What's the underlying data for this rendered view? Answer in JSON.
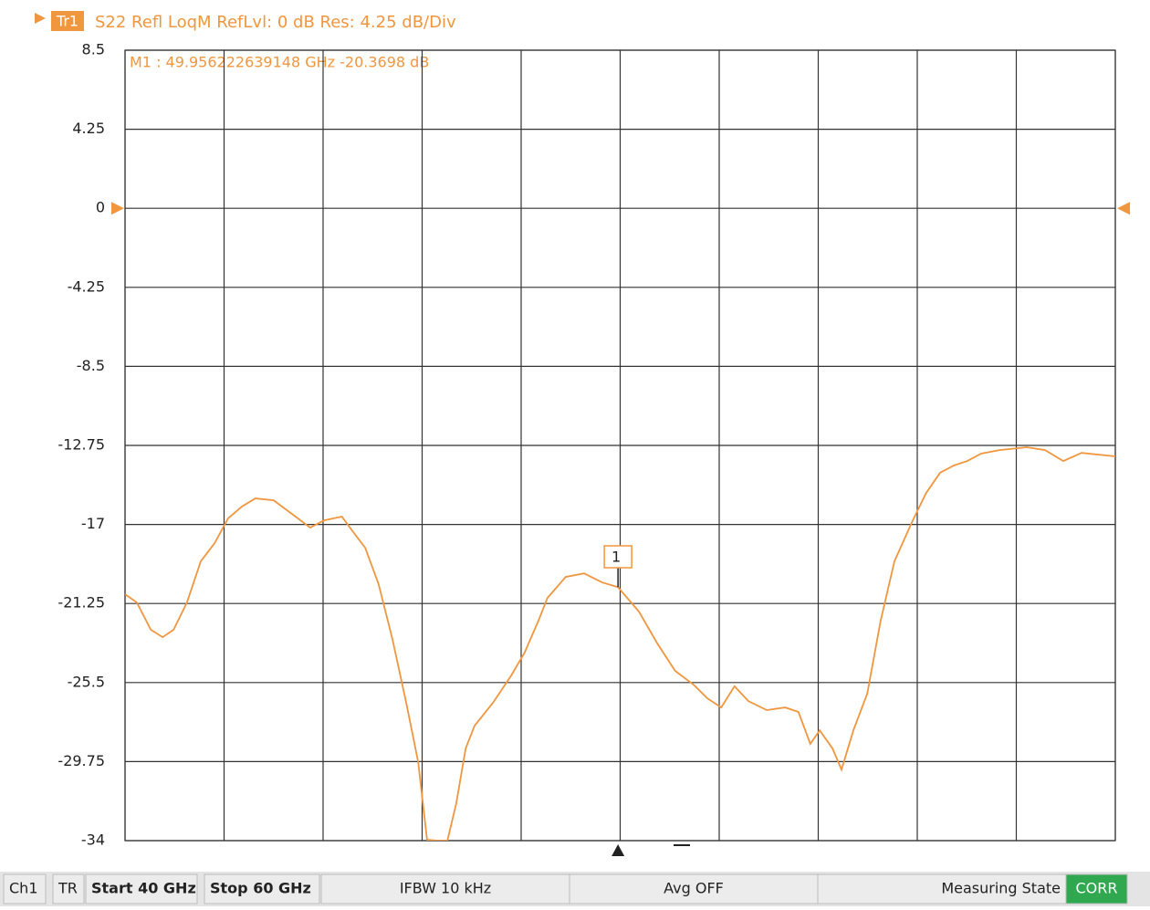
{
  "chart_data": {
    "type": "line",
    "trace_tag": "Tr1",
    "title": "S22 Refl LoqM RefLvl: 0 dB Res: 4.25 dB/Div",
    "reference": 0,
    "xlim": [
      40,
      60
    ],
    "xticks": [
      40,
      42,
      44,
      46,
      48,
      50,
      52,
      54,
      56,
      58,
      60
    ],
    "ylim": [
      -34,
      8.5
    ],
    "yticks": [
      8.5,
      4.25,
      0,
      -4.25,
      -8.5,
      -12.75,
      -17,
      -21.25,
      -25.5,
      -29.75,
      -34
    ],
    "grid": true,
    "series": [
      {
        "color": "#f0963f",
        "x": [
          40.0,
          40.24,
          40.52,
          40.76,
          40.98,
          41.25,
          41.53,
          41.81,
          42.08,
          42.36,
          42.63,
          43.0,
          43.37,
          43.74,
          44.02,
          44.38,
          44.57,
          44.85,
          45.12,
          45.4,
          45.68,
          45.92,
          46.1,
          46.32,
          46.51,
          46.69,
          46.88,
          47.06,
          47.43,
          47.8,
          48.07,
          48.35,
          48.53,
          48.9,
          49.27,
          49.64,
          49.956,
          50.38,
          50.75,
          51.11,
          51.48,
          51.76,
          52.04,
          52.31,
          52.59,
          52.96,
          53.33,
          53.6,
          53.84,
          54.03,
          54.29,
          54.47,
          54.71,
          54.99,
          55.26,
          55.54,
          55.91,
          56.18,
          56.46,
          56.74,
          57.01,
          57.29,
          57.66,
          58.21,
          58.58,
          58.95,
          59.32,
          60.0
        ],
        "values": [
          -20.75,
          -21.2,
          -22.66,
          -23.06,
          -22.66,
          -21.2,
          -18.98,
          -18.0,
          -16.68,
          -16.04,
          -15.6,
          -15.7,
          -16.43,
          -17.17,
          -16.78,
          -16.58,
          -17.27,
          -18.25,
          -20.21,
          -23.15,
          -26.59,
          -29.78,
          -33.95,
          -34,
          -34,
          -32.0,
          -29.05,
          -27.82,
          -26.59,
          -25.12,
          -23.89,
          -22.17,
          -20.95,
          -19.82,
          -19.63,
          -20.12,
          -20.37,
          -21.69,
          -23.4,
          -24.87,
          -25.61,
          -26.35,
          -26.84,
          -25.7,
          -26.5,
          -26.98,
          -26.84,
          -27.08,
          -28.8,
          -28.07,
          -29.05,
          -30.18,
          -28.07,
          -26.1,
          -22.17,
          -18.98,
          -16.78,
          -15.3,
          -14.22,
          -13.83,
          -13.59,
          -13.19,
          -13.0,
          -12.85,
          -13.0,
          -13.59,
          -13.15,
          -13.34
        ]
      }
    ],
    "marker": {
      "label": "1",
      "readout": "M1 :  49.956222639148 GHz  -20.3698 dB",
      "x": 49.956222639148,
      "y": -20.3698
    }
  },
  "status_bar": [
    "Ch1",
    "TR",
    "Start 40 GHz",
    "Stop 60 GHz",
    "IFBW 10 kHz",
    "Avg OFF",
    "Measuring State",
    "CORR"
  ]
}
